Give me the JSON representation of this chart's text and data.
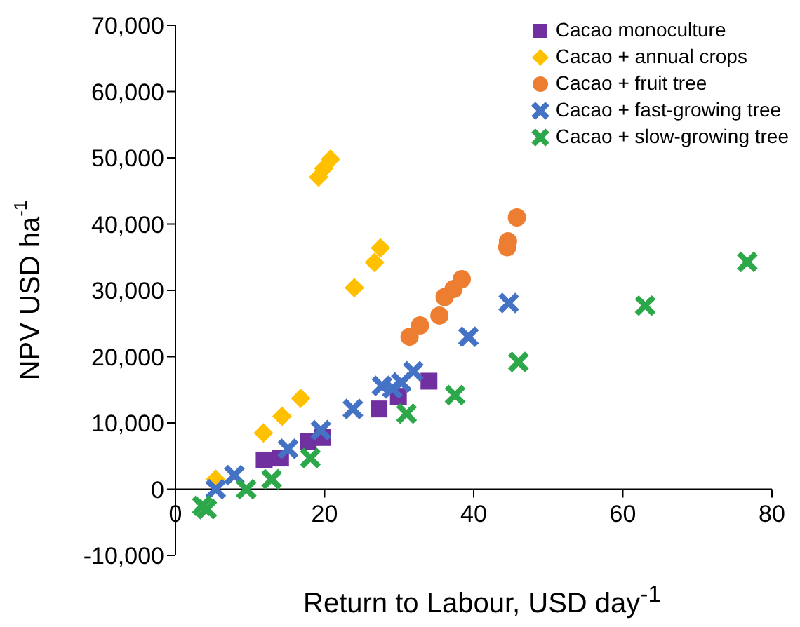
{
  "chart_data": {
    "type": "scatter",
    "xlabel": "Return to Labour, USD day$^{-1}$",
    "ylabel": "NPV USD ha$^{-1}$",
    "xlim": [
      0,
      80
    ],
    "xticks": [
      0,
      20,
      40,
      60,
      80
    ],
    "ylim": [
      -10000,
      70000
    ],
    "yticks": [
      {
        "value": -10000,
        "label": "-10,000"
      },
      0,
      {
        "value": 10000,
        "label": "10,000"
      },
      {
        "value": 20000,
        "label": "20,000"
      },
      {
        "value": 30000,
        "label": "30,000"
      },
      {
        "value": 40000,
        "label": "40,000"
      },
      {
        "value": 50000,
        "label": "50,000"
      },
      {
        "value": 60000,
        "label": "60,000"
      },
      {
        "value": 70000,
        "label": "70,000"
      }
    ],
    "grid": false,
    "legend": "top right",
    "series": [
      {
        "name": "Cacao monoculture",
        "color": "#7030a0",
        "marker": "square",
        "x": [
          11.9,
          14.1,
          17.8,
          19.7,
          27.3,
          29.9,
          34
        ],
        "values": [
          4400,
          4700,
          7200,
          7800,
          12100,
          14000,
          16300
        ]
      },
      {
        "name": "Cacao + annual crops",
        "color": "#ffc000",
        "marker": "diamond",
        "x": [
          5.4,
          11.8,
          14.3,
          16.8,
          24,
          26.7,
          27.5,
          19.2,
          19.9,
          20.8
        ],
        "values": [
          1500,
          8500,
          11000,
          13700,
          30400,
          34200,
          36400,
          47100,
          48400,
          49800
        ]
      },
      {
        "name": "Cacao + fruit tree",
        "color": "#ed7d31",
        "marker": "circle",
        "x": [
          31.4,
          32.8,
          35.4,
          36.1,
          37.3,
          38.4,
          44.5,
          44.6,
          45.8
        ],
        "values": [
          23000,
          24700,
          26200,
          29000,
          30200,
          31700,
          36500,
          37400,
          41000
        ]
      },
      {
        "name": "Cacao + fast-growing tree",
        "color": "#4472c4",
        "marker": "cross",
        "x": [
          5.4,
          7.9,
          15.1,
          19.5,
          23.8,
          27.7,
          29.1,
          30.3,
          31.9,
          39.3,
          44.7
        ],
        "values": [
          0,
          2100,
          6100,
          8900,
          12100,
          15600,
          15200,
          16100,
          17800,
          23000,
          28100
        ]
      },
      {
        "name": "Cacao + slow-growing tree",
        "color": "#2ca84a",
        "marker": "cross",
        "x": [
          3.6,
          4.2,
          9.5,
          12.9,
          18.1,
          31,
          37.5,
          46,
          63,
          76.7
        ],
        "values": [
          -2500,
          -3000,
          0,
          1500,
          4700,
          11400,
          14200,
          19200,
          27700,
          34300
        ]
      }
    ]
  }
}
